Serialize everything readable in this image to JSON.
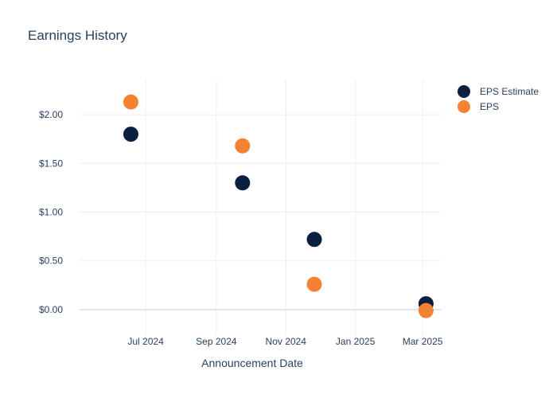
{
  "chart_data": {
    "type": "scatter",
    "title": "Earnings History",
    "xlabel": "Announcement Date",
    "ylabel": "",
    "x_ticks": [
      {
        "date": "2024-07-01",
        "label": "Jul 2024"
      },
      {
        "date": "2024-09-01",
        "label": "Sep 2024"
      },
      {
        "date": "2024-11-01",
        "label": "Nov 2024"
      },
      {
        "date": "2025-01-01",
        "label": "Jan 2025"
      },
      {
        "date": "2025-03-01",
        "label": "Mar 2025"
      }
    ],
    "y_ticks": [
      {
        "value": 0,
        "label": "$0.00"
      },
      {
        "value": 0.5,
        "label": "$0.50"
      },
      {
        "value": 1,
        "label": "$1.00"
      },
      {
        "value": 1.5,
        "label": "$1.50"
      },
      {
        "value": 2,
        "label": "$2.00"
      }
    ],
    "xlim": [
      "2024-05-04",
      "2025-03-17"
    ],
    "ylim": [
      -0.27,
      2.36
    ],
    "grid": true,
    "legend_position": "top-right",
    "series": [
      {
        "name": "EPS Estimate",
        "color": "#0b1f3f",
        "points": [
          {
            "x": "2024-06-18",
            "y": 1.8
          },
          {
            "x": "2024-09-24",
            "y": 1.3
          },
          {
            "x": "2024-11-26",
            "y": 0.72
          },
          {
            "x": "2025-03-04",
            "y": 0.06
          }
        ]
      },
      {
        "name": "EPS",
        "color": "#f58233",
        "points": [
          {
            "x": "2024-06-18",
            "y": 2.13
          },
          {
            "x": "2024-09-24",
            "y": 1.68
          },
          {
            "x": "2024-11-26",
            "y": 0.26
          },
          {
            "x": "2025-03-04",
            "y": -0.01
          }
        ]
      }
    ]
  }
}
